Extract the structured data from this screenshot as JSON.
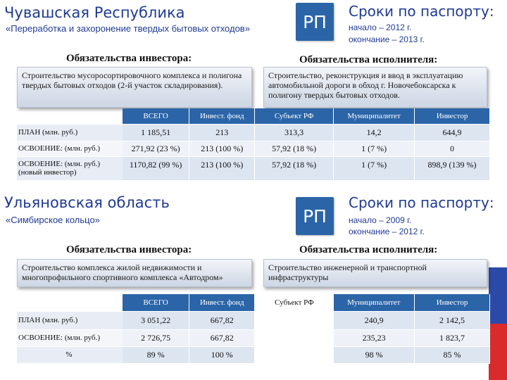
{
  "colors": {
    "accent": "#1f3a93",
    "header_cell": "#2b65a8",
    "flag_white": "#ffffff",
    "flag_blue": "#2b4aa8",
    "flag_red": "#d92b2b"
  },
  "region1": {
    "title": "Чувашская Республика",
    "subtitle": "«Переработка и захоронение твердых бытовых отходов»",
    "badge": "РП",
    "deadline_title": "Сроки по паспорту:",
    "start": "начало – 2012 г.",
    "end": "окончание – 2013 г.",
    "investor_heading": "Обязательства инвестора:",
    "investor_text": "Строительство мусоросортировочного комплекса и полигона твердых бытовых отходов (2-й участок складирования).",
    "executor_heading": "Обязательства исполнителя:",
    "executor_text": "Строительство, реконструкция и ввод в эксплуатацию автомобильной дороги в обход г. Новочебоксарска к полигону твердых бытовых отходов.",
    "table": {
      "headers": [
        "ВСЕГО",
        "Инвест. фонд",
        "Субъект РФ",
        "Муниципалитет",
        "Инвестор"
      ],
      "rows": [
        {
          "label": "ПЛАН (млн. руб.)",
          "values": [
            "1 185,51",
            "213",
            "313,3",
            "14,2",
            "644,9"
          ]
        },
        {
          "label": "ОСВОЕНИЕ:  (млн. руб.)",
          "values": [
            "271,92 (23 %)",
            "213 (100 %)",
            "57,92 (18 %)",
            "1 (7 %)",
            "0"
          ]
        },
        {
          "label": "ОСВОЕНИЕ:  (млн. руб.) (новый инвестор)",
          "values": [
            "1170,82 (99 %)",
            "213 (100 %)",
            "57,92 (18 %)",
            "1 (7 %)",
            "898,9 (139 %)"
          ]
        }
      ]
    }
  },
  "region2": {
    "title": "Ульяновская область",
    "subtitle": "«Симбирское кольцо»",
    "badge": "РП",
    "deadline_title": "Сроки по паспорту:",
    "start": "начало – 2009 г.",
    "end": "окончание – 2012 г.",
    "investor_heading": "Обязательства инвестора:",
    "investor_text": "Строительство комплекса жилой недвижимости и многопрофильного спортивного комплекса «Автодром»",
    "executor_heading": "Обязательства исполнителя:",
    "executor_text": "Строительство инженерной и транспортной инфраструктуры",
    "table": {
      "headers": [
        "ВСЕГО",
        "Инвест. фонд",
        "Субъект РФ",
        "Муниципалитет",
        "Инвестор"
      ],
      "rows": [
        {
          "label": "ПЛАН (млн. руб.)",
          "values": [
            "3 051,22",
            "667,82",
            "",
            "240,9",
            "2 142,5"
          ]
        },
        {
          "label": "ОСВОЕНИЕ:  (млн. руб.)",
          "values": [
            "2 726,75",
            "667,82",
            "",
            "235,23",
            "1 823,7"
          ]
        },
        {
          "label": "%",
          "values": [
            "89 %",
            "100 %",
            "",
            "98 %",
            "85 %"
          ]
        }
      ]
    }
  }
}
